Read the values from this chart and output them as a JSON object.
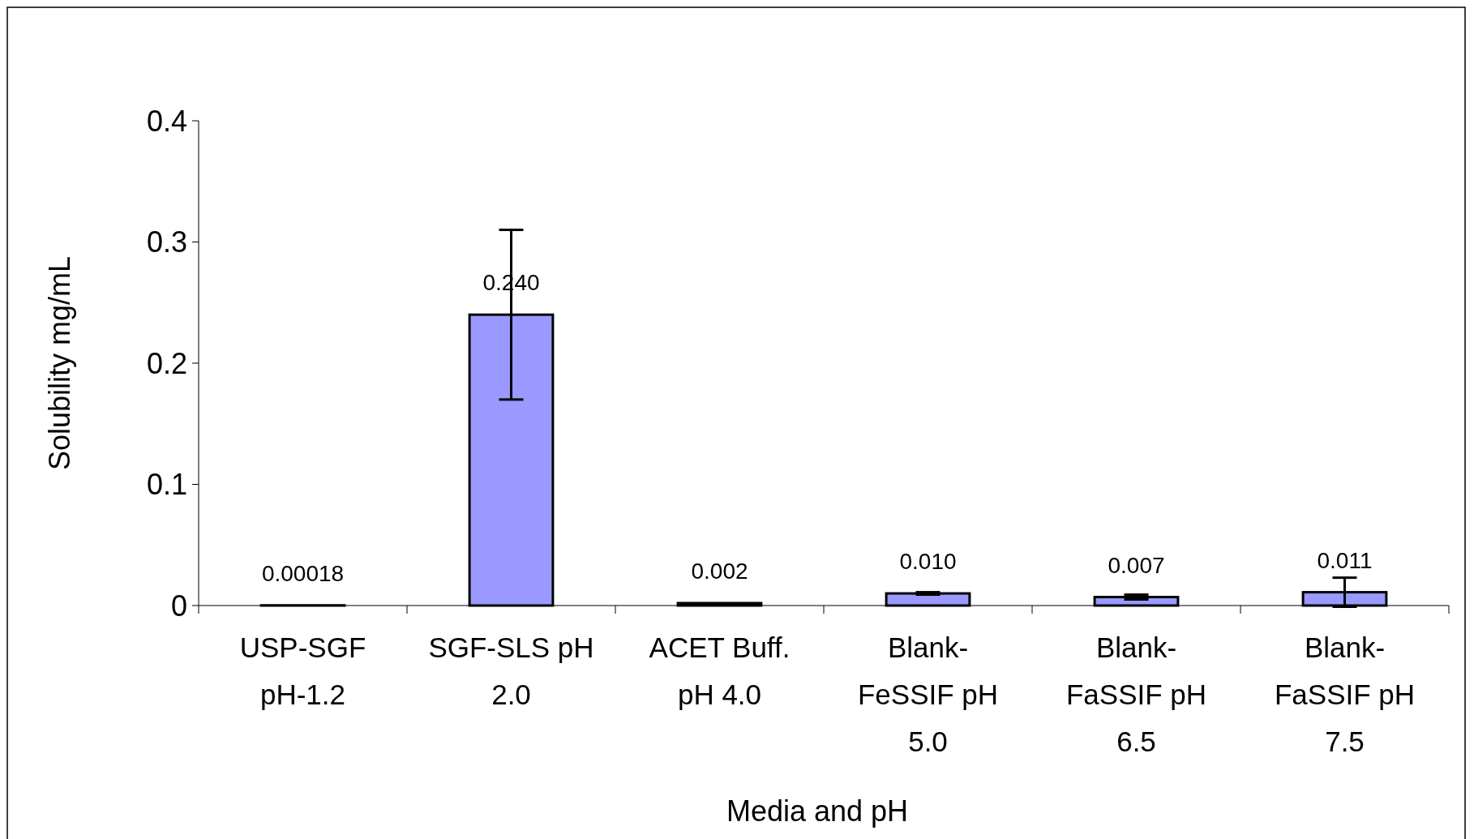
{
  "chart_data": {
    "type": "bar",
    "xlabel": "Media and pH",
    "ylabel": "Solubility mg/mL",
    "categories": [
      "USP-SGF pH-1.2",
      "SGF-SLS pH 2.0",
      "ACET Buff. pH 4.0",
      "Blank- FeSSIF pH 5.0",
      "Blank- FaSSIF pH 6.5",
      "Blank- FaSSIF pH 7.5"
    ],
    "values": [
      0.00018,
      0.24,
      0.002,
      0.01,
      0.007,
      0.011
    ],
    "value_labels": [
      "0.00018",
      "0.240",
      "0.002",
      "0.010",
      "0.007",
      "0.011"
    ],
    "errors": [
      null,
      0.07,
      null,
      0.001,
      0.002,
      0.012
    ],
    "color": "#9999ff",
    "ylim": [
      0,
      0.4
    ],
    "yticks": [
      0,
      0.1,
      0.2,
      0.3,
      0.4
    ],
    "grid": false
  }
}
